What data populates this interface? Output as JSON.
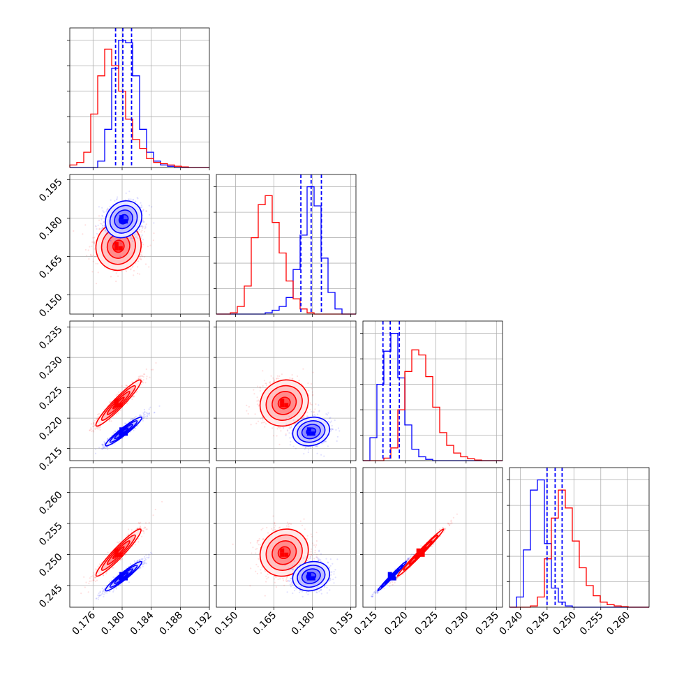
{
  "chart_data": {
    "type": "corner",
    "title": "",
    "parameters": [
      "",
      "",
      "",
      ""
    ],
    "colors": {
      "series_a": "#0000ff",
      "series_b": "#ff0000",
      "grid": "#b0b0b0",
      "axis": "#000000"
    },
    "grid": true,
    "axes": [
      {
        "lim": [
          0.1728,
          0.192
        ],
        "ticks": [
          0.176,
          0.18,
          0.184,
          0.188,
          0.192
        ],
        "tick_labels": [
          "0.176",
          "0.180",
          "0.184",
          "0.188",
          "0.192"
        ]
      },
      {
        "lim": [
          0.1425,
          0.197
        ],
        "ticks": [
          0.15,
          0.165,
          0.18,
          0.195
        ],
        "tick_labels": [
          "0.150",
          "0.165",
          "0.180",
          "0.195"
        ]
      },
      {
        "lim": [
          0.213,
          0.236
        ],
        "ticks": [
          0.215,
          0.22,
          0.225,
          0.23,
          0.235
        ],
        "tick_labels": [
          "0.215",
          "0.220",
          "0.225",
          "0.230",
          "0.235"
        ]
      },
      {
        "lim": [
          0.2415,
          0.264
        ],
        "ticks": [
          0.245,
          0.25,
          0.255,
          0.26
        ],
        "tick_labels": [
          "0.245",
          "0.250",
          "0.255",
          "0.260"
        ]
      }
    ],
    "diagonal_axes": [
      {
        "lim": [
          0.1728,
          0.192
        ],
        "ticks": [
          0.176,
          0.18,
          0.184,
          0.188,
          0.192
        ],
        "tick_labels": [
          "0.176",
          "0.180",
          "0.184",
          "0.188",
          "0.192"
        ]
      },
      {
        "lim": [
          0.1425,
          0.197
        ],
        "ticks": [
          0.15,
          0.165,
          0.18,
          0.195
        ],
        "tick_labels": [
          "0.150",
          "0.165",
          "0.180",
          "0.195"
        ]
      },
      {
        "lim": [
          0.213,
          0.236
        ],
        "ticks": [
          0.215,
          0.22,
          0.225,
          0.23,
          0.235
        ],
        "tick_labels": [
          "0.215",
          "0.220",
          "0.225",
          "0.230",
          "0.235"
        ]
      },
      {
        "lim": [
          0.238,
          0.264
        ],
        "ticks": [
          0.24,
          0.245,
          0.25,
          0.255,
          0.26
        ],
        "tick_labels": [
          "0.240",
          "0.245",
          "0.250",
          "0.255",
          "0.260"
        ]
      }
    ],
    "series": [
      {
        "name": "",
        "color": "#0000ff",
        "means": [
          0.1802,
          0.1795,
          0.2178,
          0.2465
        ],
        "sigmas": [
          0.00125,
          0.0036,
          0.00118,
          0.00118
        ],
        "quantiles": [
          [
            0.1791,
            0.1801,
            0.1813
          ],
          [
            0.1755,
            0.1795,
            0.1835
          ],
          [
            0.2163,
            0.2175,
            0.219
          ],
          [
            0.245,
            0.2465,
            0.2478
          ]
        ],
        "correlation": [
          [
            1.0,
            0.15,
            0.95,
            0.95
          ],
          [
            0.15,
            1.0,
            0.15,
            0.15
          ],
          [
            0.95,
            0.15,
            1.0,
            0.99
          ],
          [
            0.95,
            0.15,
            0.99,
            1.0
          ]
        ]
      },
      {
        "name": "",
        "color": "#ff0000",
        "means": [
          0.1795,
          0.169,
          0.2225,
          0.2503
        ],
        "sigmas": [
          0.00155,
          0.0047,
          0.0019,
          0.0019
        ],
        "correlation": [
          [
            1.0,
            0.05,
            0.95,
            0.95
          ],
          [
            0.05,
            1.0,
            0.1,
            0.1
          ],
          [
            0.95,
            0.1,
            1.0,
            0.99
          ],
          [
            0.95,
            0.1,
            0.99,
            1.0
          ]
        ]
      }
    ],
    "histograms": [
      {
        "edges_lim": [
          0.1728,
          0.192
        ],
        "series": [
          {
            "name": "",
            "color": "#0000ff",
            "counts": [
              0,
              0,
              0,
              0,
              0.05,
              0.3,
              0.78,
              1.0,
              0.98,
              0.72,
              0.3,
              0.12,
              0.05,
              0.02,
              0.01,
              0,
              0,
              0,
              0,
              0
            ]
          },
          {
            "name": "",
            "color": "#ff0000",
            "counts": [
              0.02,
              0.04,
              0.12,
              0.42,
              0.72,
              0.93,
              0.8,
              0.6,
              0.38,
              0.22,
              0.15,
              0.07,
              0.04,
              0.03,
              0.02,
              0.01,
              0.005,
              0,
              0,
              0
            ]
          }
        ]
      },
      {
        "edges_lim": [
          0.1425,
          0.197
        ],
        "series": [
          {
            "name": "",
            "color": "#0000ff",
            "counts": [
              0,
              0,
              0,
              0,
              0,
              0,
              0,
              0.01,
              0.03,
              0.06,
              0.13,
              0.35,
              0.62,
              1.0,
              0.85,
              0.44,
              0.17,
              0.04,
              0,
              0
            ]
          },
          {
            "name": "",
            "color": "#ff0000",
            "counts": [
              0,
              0,
              0.01,
              0.06,
              0.22,
              0.6,
              0.86,
              0.93,
              0.72,
              0.48,
              0.26,
              0.12,
              0.04,
              0.01,
              0,
              0,
              0,
              0,
              0,
              0
            ]
          }
        ]
      },
      {
        "edges_lim": [
          0.213,
          0.236
        ],
        "series": [
          {
            "name": "",
            "color": "#0000ff",
            "counts": [
              0,
              0.18,
              0.6,
              0.86,
              1.0,
              0.65,
              0.28,
              0.09,
              0.03,
              0.01,
              0,
              0,
              0,
              0,
              0,
              0,
              0,
              0,
              0,
              0
            ]
          },
          {
            "name": "",
            "color": "#ff0000",
            "counts": [
              0,
              0,
              0,
              0.02,
              0.1,
              0.4,
              0.7,
              0.87,
              0.83,
              0.66,
              0.42,
              0.22,
              0.12,
              0.06,
              0.03,
              0.015,
              0.005,
              0,
              0,
              0
            ]
          }
        ]
      },
      {
        "edges_lim": [
          0.238,
          0.264
        ],
        "series": [
          {
            "name": "",
            "color": "#0000ff",
            "counts": [
              0,
              0.08,
              0.45,
              0.92,
              1.0,
              0.5,
              0.15,
              0.04,
              0.01,
              0,
              0,
              0,
              0,
              0,
              0,
              0,
              0,
              0,
              0,
              0
            ]
          },
          {
            "name": "",
            "color": "#ff0000",
            "counts": [
              0,
              0,
              0,
              0.01,
              0.08,
              0.38,
              0.7,
              0.92,
              0.78,
              0.52,
              0.31,
              0.17,
              0.09,
              0.04,
              0.02,
              0.01,
              0.005,
              0,
              0,
              0
            ]
          }
        ]
      }
    ],
    "contour_levels_sigma": [
      0.5,
      1.0,
      1.5,
      2.0
    ],
    "quantile_lines": {
      "color": "#0000ff",
      "style": "dashed"
    }
  }
}
